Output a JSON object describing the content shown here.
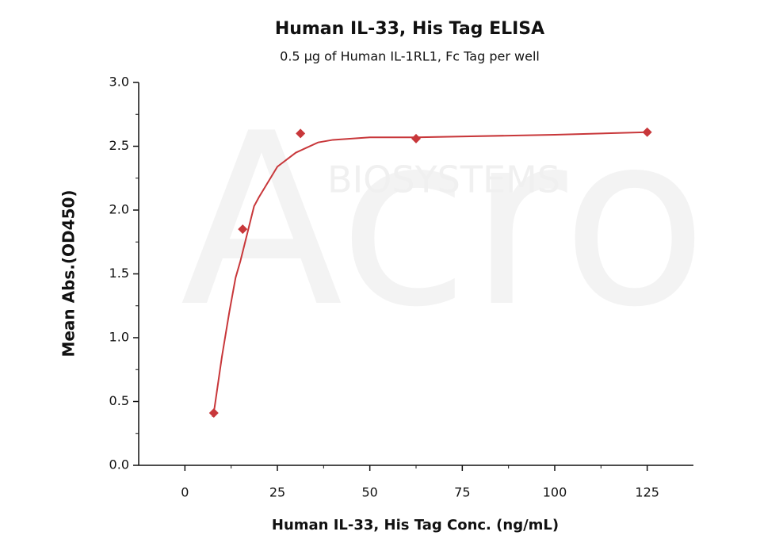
{
  "chart_data": {
    "type": "scatter",
    "title": "Human IL-33, His Tag ELISA",
    "subtitle": "0.5 μg of Human IL-1RL1, Fc Tag per well",
    "x_label": "Human IL-33, His Tag Conc. (ng/mL)",
    "y_label": "Mean Abs.(OD450)",
    "watermark": [
      "Acro",
      "BIOSYSTEMS"
    ],
    "color": "#c8373a",
    "x": [
      7.8125,
      15.625,
      31.25,
      62.5,
      125
    ],
    "values": [
      0.41,
      1.85,
      2.6,
      2.56,
      2.61
    ],
    "fit": {
      "x": [
        7.5,
        8,
        10,
        12,
        13.7,
        15,
        18.7,
        20,
        25,
        30,
        36,
        40,
        50,
        62.5,
        100,
        125
      ],
      "values": [
        0.38,
        0.45,
        0.85,
        1.2,
        1.47,
        1.6,
        2.03,
        2.1,
        2.34,
        2.45,
        2.53,
        2.55,
        2.57,
        2.57,
        2.59,
        2.61
      ]
    },
    "xlim": [
      -12.5,
      137.5
    ],
    "xticks": [
      0,
      25,
      50,
      75,
      100,
      125
    ],
    "ylim": [
      0,
      3
    ],
    "yticks": [
      {
        "value": 0,
        "label": "0.0"
      },
      {
        "value": 0.5,
        "label": "0.5"
      },
      {
        "value": 1,
        "label": "1.0"
      },
      {
        "value": 1.5,
        "label": "1.5"
      },
      {
        "value": 2,
        "label": "2.0"
      },
      {
        "value": 2.5,
        "label": "2.5"
      },
      {
        "value": 3,
        "label": "3.0"
      }
    ]
  }
}
